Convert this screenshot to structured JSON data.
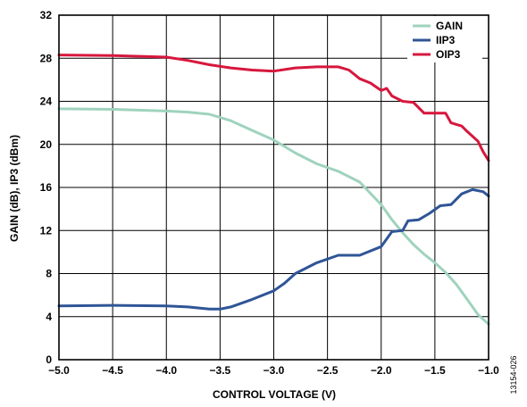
{
  "chart_data": {
    "type": "line",
    "xlabel": "CONTROL VOLTAGE (V)",
    "ylabel": "GAIN (dB), IP3 (dBm)",
    "xlim": [
      -5.0,
      -1.0
    ],
    "ylim": [
      0,
      32
    ],
    "x_ticks": [
      "−5.0",
      "−4.5",
      "−4.0",
      "−3.5",
      "−3.0",
      "−2.5",
      "−2.0",
      "−1.5",
      "−1.0"
    ],
    "y_ticks": [
      "0",
      "4",
      "8",
      "12",
      "16",
      "20",
      "24",
      "28",
      "32"
    ],
    "grid": true,
    "legend_position": "top-right",
    "figure_id": "13154-026",
    "series": [
      {
        "name": "GAIN",
        "color": "#9fd3bd",
        "points": [
          [
            -5.0,
            23.3
          ],
          [
            -4.5,
            23.25
          ],
          [
            -4.0,
            23.1
          ],
          [
            -3.8,
            23.0
          ],
          [
            -3.6,
            22.8
          ],
          [
            -3.4,
            22.2
          ],
          [
            -3.2,
            21.3
          ],
          [
            -3.0,
            20.4
          ],
          [
            -2.8,
            19.2
          ],
          [
            -2.6,
            18.2
          ],
          [
            -2.4,
            17.5
          ],
          [
            -2.2,
            16.5
          ],
          [
            -2.0,
            14.4
          ],
          [
            -1.9,
            13.0
          ],
          [
            -1.8,
            11.8
          ],
          [
            -1.7,
            10.7
          ],
          [
            -1.6,
            9.8
          ],
          [
            -1.5,
            9.0
          ],
          [
            -1.4,
            8.1
          ],
          [
            -1.3,
            7.0
          ],
          [
            -1.2,
            5.6
          ],
          [
            -1.1,
            4.2
          ],
          [
            -1.0,
            3.3
          ]
        ]
      },
      {
        "name": "IIP3",
        "color": "#2f5597",
        "points": [
          [
            -5.0,
            5.0
          ],
          [
            -4.5,
            5.05
          ],
          [
            -4.0,
            5.0
          ],
          [
            -3.8,
            4.9
          ],
          [
            -3.6,
            4.7
          ],
          [
            -3.5,
            4.7
          ],
          [
            -3.4,
            4.9
          ],
          [
            -3.2,
            5.6
          ],
          [
            -3.0,
            6.4
          ],
          [
            -2.9,
            7.1
          ],
          [
            -2.8,
            8.0
          ],
          [
            -2.6,
            9.0
          ],
          [
            -2.4,
            9.7
          ],
          [
            -2.2,
            9.7
          ],
          [
            -2.0,
            10.5
          ],
          [
            -1.9,
            11.9
          ],
          [
            -1.8,
            12.0
          ],
          [
            -1.75,
            12.9
          ],
          [
            -1.65,
            13.0
          ],
          [
            -1.55,
            13.6
          ],
          [
            -1.45,
            14.3
          ],
          [
            -1.35,
            14.4
          ],
          [
            -1.25,
            15.4
          ],
          [
            -1.15,
            15.8
          ],
          [
            -1.05,
            15.6
          ],
          [
            -1.0,
            15.2
          ]
        ]
      },
      {
        "name": "OIP3",
        "color": "#d7173d",
        "points": [
          [
            -5.0,
            28.3
          ],
          [
            -4.5,
            28.25
          ],
          [
            -4.0,
            28.1
          ],
          [
            -3.8,
            27.8
          ],
          [
            -3.6,
            27.4
          ],
          [
            -3.4,
            27.1
          ],
          [
            -3.2,
            26.9
          ],
          [
            -3.0,
            26.8
          ],
          [
            -2.8,
            27.1
          ],
          [
            -2.6,
            27.2
          ],
          [
            -2.4,
            27.2
          ],
          [
            -2.3,
            26.9
          ],
          [
            -2.2,
            26.1
          ],
          [
            -2.1,
            25.7
          ],
          [
            -2.0,
            25.0
          ],
          [
            -1.95,
            25.2
          ],
          [
            -1.9,
            24.5
          ],
          [
            -1.8,
            24.0
          ],
          [
            -1.7,
            23.9
          ],
          [
            -1.6,
            22.9
          ],
          [
            -1.5,
            22.9
          ],
          [
            -1.4,
            22.9
          ],
          [
            -1.35,
            22.0
          ],
          [
            -1.25,
            21.7
          ],
          [
            -1.2,
            21.2
          ],
          [
            -1.1,
            20.3
          ],
          [
            -1.05,
            19.3
          ],
          [
            -1.0,
            18.5
          ]
        ]
      }
    ]
  }
}
